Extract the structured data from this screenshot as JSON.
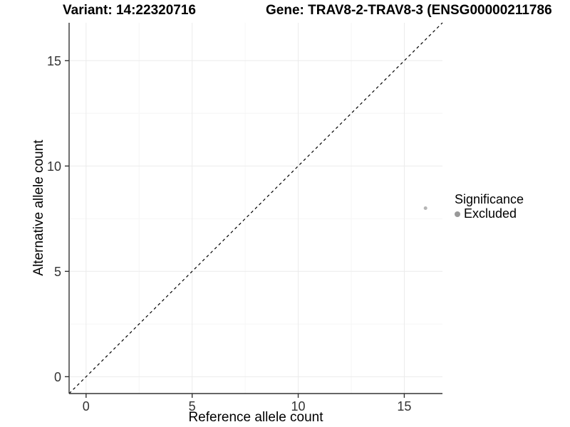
{
  "figure": {
    "title_left": "Variant: 14:22320716",
    "title_right": "Gene: TRAV8-2-TRAV8-3 (ENSG00000211786",
    "xlabel": "Reference allele count",
    "ylabel": "Alternative allele count"
  },
  "legend": {
    "title": "Significance",
    "items": [
      {
        "label": "Excluded",
        "color": "#999999"
      }
    ]
  },
  "chart_data": {
    "type": "scatter",
    "title": "Variant: 14:22320716   Gene: TRAV8-2-TRAV8-3 (ENSG00000211786",
    "xlabel": "Reference allele count",
    "ylabel": "Alternative allele count",
    "xlim": [
      -0.8,
      16.8
    ],
    "ylim": [
      -0.8,
      16.8
    ],
    "x_ticks": [
      0,
      5,
      10,
      15
    ],
    "y_ticks": [
      0,
      5,
      10,
      15
    ],
    "x_minor_ticks": [
      2.5,
      7.5,
      12.5
    ],
    "y_minor_ticks": [
      2.5,
      7.5,
      12.5
    ],
    "grid": "major+minor",
    "legend_position": "right",
    "series": [
      {
        "name": "Excluded",
        "color": "#b5b5b5",
        "point_radius": 2.5,
        "points": [
          {
            "x": 16,
            "y": 8
          }
        ]
      }
    ],
    "reference_line": {
      "type": "identity y=x",
      "style": "dashed",
      "from": [
        -0.8,
        -0.8
      ],
      "to": [
        16.8,
        16.8
      ],
      "color": "#000000"
    }
  },
  "colors": {
    "background": "#ffffff",
    "grid_major": "#ebebeb",
    "grid_minor": "#f6f6f6",
    "axis_line": "#333333",
    "tick_mark": "#333333",
    "tick_label": "#333333",
    "legend_point": "#999999"
  }
}
